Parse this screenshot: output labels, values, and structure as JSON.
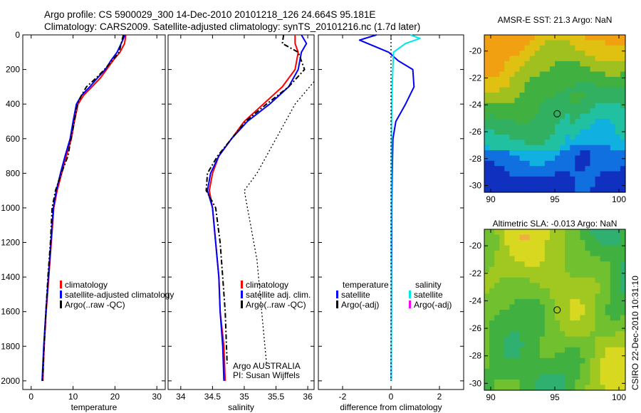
{
  "titles": {
    "line1": "Argo profile: CS 5900029_300 14-Dec-2010 20101218_126 24.664S 95.181E",
    "line2": "Climatology: CARS2009. Satellite-adjusted climatology: synTS_20101216.nc (1.7d later)"
  },
  "stamp": "CSIRO 22-Dec-2010 10:31:10",
  "colors": {
    "red": "#ff0000",
    "blue": "#0000ff",
    "black": "#000000",
    "cyan": "#00e5ee",
    "magenta": "#ff00ff"
  },
  "chart_data": [
    {
      "id": "temperature",
      "type": "line",
      "xlabel": "temperature",
      "ylabel": "",
      "xlim": [
        -2,
        32
      ],
      "ylim": [
        0,
        2050
      ],
      "y_reversed": true,
      "xticks": [
        0,
        10,
        20,
        30
      ],
      "yticks": [
        0,
        200,
        400,
        600,
        800,
        1000,
        1200,
        1400,
        1600,
        1800,
        2000
      ],
      "legend": {
        "position": "bottom-center",
        "entries": [
          "climatology",
          "satellite-adjusted climatology",
          "Argo(..raw -QC)"
        ]
      },
      "series": [
        {
          "name": "climatology",
          "color": "red",
          "dash": "solid",
          "points": [
            [
              22.6,
              0
            ],
            [
              22.3,
              50
            ],
            [
              21.2,
              100
            ],
            [
              19.5,
              150
            ],
            [
              18,
              200
            ],
            [
              16.5,
              250
            ],
            [
              14.5,
              300
            ],
            [
              12.5,
              350
            ],
            [
              11.2,
              400
            ],
            [
              10.3,
              500
            ],
            [
              9.6,
              600
            ],
            [
              8.4,
              700
            ],
            [
              7.3,
              800
            ],
            [
              6.2,
              900
            ],
            [
              5.4,
              1000
            ],
            [
              4.8,
              1200
            ],
            [
              4.2,
              1400
            ],
            [
              3.6,
              1600
            ],
            [
              3.1,
              1800
            ],
            [
              2.8,
              2000
            ]
          ]
        },
        {
          "name": "satellite-adjusted climatology",
          "color": "blue",
          "dash": "solid",
          "points": [
            [
              22.4,
              0
            ],
            [
              21.5,
              50
            ],
            [
              20.5,
              100
            ],
            [
              19,
              150
            ],
            [
              17.7,
              200
            ],
            [
              15.8,
              250
            ],
            [
              14,
              300
            ],
            [
              12,
              350
            ],
            [
              10.8,
              400
            ],
            [
              10,
              500
            ],
            [
              9.3,
              600
            ],
            [
              8.1,
              700
            ],
            [
              7,
              800
            ],
            [
              6,
              900
            ],
            [
              5.3,
              1000
            ],
            [
              4.7,
              1200
            ],
            [
              4.1,
              1400
            ],
            [
              3.5,
              1600
            ],
            [
              3,
              1800
            ],
            [
              2.6,
              2000
            ]
          ]
        },
        {
          "name": "Argo(..raw -QC)",
          "color": "black",
          "dash": "dashdot",
          "points": [
            [
              22,
              0
            ],
            [
              21.5,
              50
            ],
            [
              21,
              100
            ],
            [
              19.3,
              150
            ],
            [
              17.5,
              200
            ],
            [
              15.5,
              250
            ],
            [
              13.2,
              300
            ],
            [
              12,
              350
            ],
            [
              11,
              400
            ],
            [
              10.3,
              500
            ],
            [
              9.5,
              600
            ],
            [
              8.8,
              700
            ],
            [
              7.2,
              800
            ],
            [
              5.8,
              900
            ],
            [
              5,
              1000
            ],
            [
              4.6,
              1200
            ],
            [
              4,
              1400
            ],
            [
              3.5,
              1600
            ],
            [
              3.1,
              1800
            ],
            [
              2.7,
              2000
            ]
          ]
        }
      ]
    },
    {
      "id": "salinity",
      "type": "line",
      "xlabel": "salinity",
      "ylabel": "",
      "xlim": [
        33.8,
        36.1
      ],
      "ylim": [
        0,
        2050
      ],
      "y_reversed": true,
      "xticks": [
        34,
        34.5,
        35,
        35.5,
        36
      ],
      "xticklabels": [
        "34",
        "34.5",
        "35",
        "35.5",
        "36"
      ],
      "legend": {
        "position": "bottom-center",
        "entries": [
          "climatology",
          "satellite adj. clim.",
          "Argo(..raw -QC)"
        ]
      },
      "annotations": [
        "Argo AUSTRALIA",
        "PI: Susan Wijffels"
      ],
      "series": [
        {
          "name": "climatology",
          "color": "red",
          "dash": "solid",
          "points": [
            [
              35.8,
              0
            ],
            [
              35.8,
              50
            ],
            [
              35.85,
              100
            ],
            [
              35.8,
              200
            ],
            [
              35.6,
              300
            ],
            [
              35.3,
              400
            ],
            [
              35,
              500
            ],
            [
              34.8,
              600
            ],
            [
              34.6,
              700
            ],
            [
              34.5,
              800
            ],
            [
              34.45,
              900
            ],
            [
              34.5,
              1000
            ],
            [
              34.55,
              1200
            ],
            [
              34.6,
              1400
            ],
            [
              34.62,
              1600
            ],
            [
              34.68,
              1800
            ],
            [
              34.7,
              2000
            ]
          ]
        },
        {
          "name": "satellite adj. clim.",
          "color": "blue",
          "dash": "solid",
          "points": [
            [
              35.9,
              0
            ],
            [
              35.98,
              50
            ],
            [
              35.9,
              100
            ],
            [
              35.85,
              200
            ],
            [
              35.7,
              300
            ],
            [
              35.4,
              400
            ],
            [
              35.05,
              500
            ],
            [
              34.8,
              600
            ],
            [
              34.6,
              700
            ],
            [
              34.47,
              800
            ],
            [
              34.42,
              900
            ],
            [
              34.5,
              1000
            ],
            [
              34.55,
              1200
            ],
            [
              34.6,
              1400
            ],
            [
              34.62,
              1600
            ],
            [
              34.66,
              1800
            ],
            [
              34.68,
              2000
            ]
          ]
        },
        {
          "name": "Argo(..raw -QC)",
          "color": "black",
          "dash": "dashdot",
          "points": [
            [
              35.62,
              0
            ],
            [
              35.6,
              50
            ],
            [
              35.85,
              100
            ],
            [
              35.95,
              200
            ],
            [
              35.7,
              300
            ],
            [
              35.35,
              400
            ],
            [
              35.02,
              500
            ],
            [
              34.8,
              600
            ],
            [
              34.58,
              700
            ],
            [
              34.42,
              800
            ],
            [
              34.4,
              900
            ],
            [
              34.55,
              1000
            ],
            [
              34.62,
              1200
            ],
            [
              34.66,
              1400
            ],
            [
              34.7,
              1600
            ],
            [
              34.72,
              1800
            ],
            [
              34.73,
              1900
            ]
          ]
        },
        {
          "name": "Argo(..raw -QC)",
          "color": "black",
          "dash": "dotted",
          "points": [
            [
              36.1,
              270
            ],
            [
              35.8,
              400
            ],
            [
              35.5,
              600
            ],
            [
              35.2,
              800
            ],
            [
              35,
              900
            ],
            [
              35.1,
              1100
            ],
            [
              35.2,
              1300
            ],
            [
              35.25,
              1500
            ],
            [
              35.3,
              1700
            ],
            [
              35.35,
              1900
            ]
          ]
        }
      ]
    },
    {
      "id": "difference",
      "type": "line",
      "xlabel": "difference from climatology",
      "ylabel": "",
      "xlim": [
        -3,
        3
      ],
      "ylim": [
        0,
        2050
      ],
      "y_reversed": true,
      "xticks": [
        -2,
        0,
        2
      ],
      "legend": {
        "position": "bottom-center",
        "groups": [
          {
            "header": "temperature",
            "entries": [
              "satellite",
              "Argo(-adj)"
            ]
          },
          {
            "header": "salinity",
            "entries": [
              "satellite",
              "Argo(-adj)"
            ]
          }
        ]
      },
      "series": [
        {
          "name": "satellite",
          "color": "blue",
          "dash": "solid",
          "points": [
            [
              -0.6,
              0
            ],
            [
              -1.3,
              30
            ],
            [
              -0.1,
              100
            ],
            [
              0.3,
              150
            ],
            [
              0.9,
              200
            ],
            [
              0.95,
              300
            ],
            [
              0.6,
              400
            ],
            [
              0.2,
              500
            ],
            [
              0.08,
              600
            ],
            [
              0.05,
              800
            ],
            [
              0.03,
              1000
            ],
            [
              0.02,
              1500
            ],
            [
              0.01,
              2000
            ]
          ]
        },
        {
          "name": "satellite",
          "color": "cyan",
          "dash": "solid",
          "points": [
            [
              0.8,
              0
            ],
            [
              1.2,
              20
            ],
            [
              0.6,
              50
            ],
            [
              0.1,
              100
            ],
            [
              0.05,
              300
            ],
            [
              0.02,
              500
            ],
            [
              0.02,
              800
            ],
            [
              0.01,
              1200
            ],
            [
              0.02,
              1600
            ],
            [
              0.01,
              2000
            ]
          ]
        },
        {
          "name": "zero",
          "color": "black",
          "dash": "dotted",
          "points": [
            [
              0,
              0
            ],
            [
              0,
              2000
            ]
          ]
        }
      ]
    }
  ],
  "maps": [
    {
      "title": "AMSR-E SST: 21.3  Argo: NaN",
      "xlim": [
        89.5,
        100.5
      ],
      "ylim": [
        -30.5,
        -18.8
      ],
      "xticks": [
        90,
        95,
        100
      ],
      "yticks": [
        -20,
        -22,
        -24,
        -26,
        -28,
        -30
      ],
      "marker": [
        95.181,
        -24.664
      ],
      "palette": [
        "#1030c0",
        "#1070e0",
        "#10b0e0",
        "#20c0a0",
        "#30b060",
        "#40b040",
        "#a0c020",
        "#e0c010",
        "#f0a010",
        "#f08010"
      ]
    },
    {
      "title": "Altimetric SLA: -0.013  Argo: NaN",
      "xlim": [
        89.5,
        100.5
      ],
      "ylim": [
        -30.5,
        -18.8
      ],
      "xticks": [
        90,
        95,
        100
      ],
      "yticks": [
        -20,
        -22,
        -24,
        -26,
        -28,
        -30
      ],
      "marker": [
        95.181,
        -24.664
      ],
      "palette": [
        "#20a0a0",
        "#30b070",
        "#40b040",
        "#70c030",
        "#a0c820",
        "#d8d820",
        "#f0b040"
      ]
    }
  ]
}
